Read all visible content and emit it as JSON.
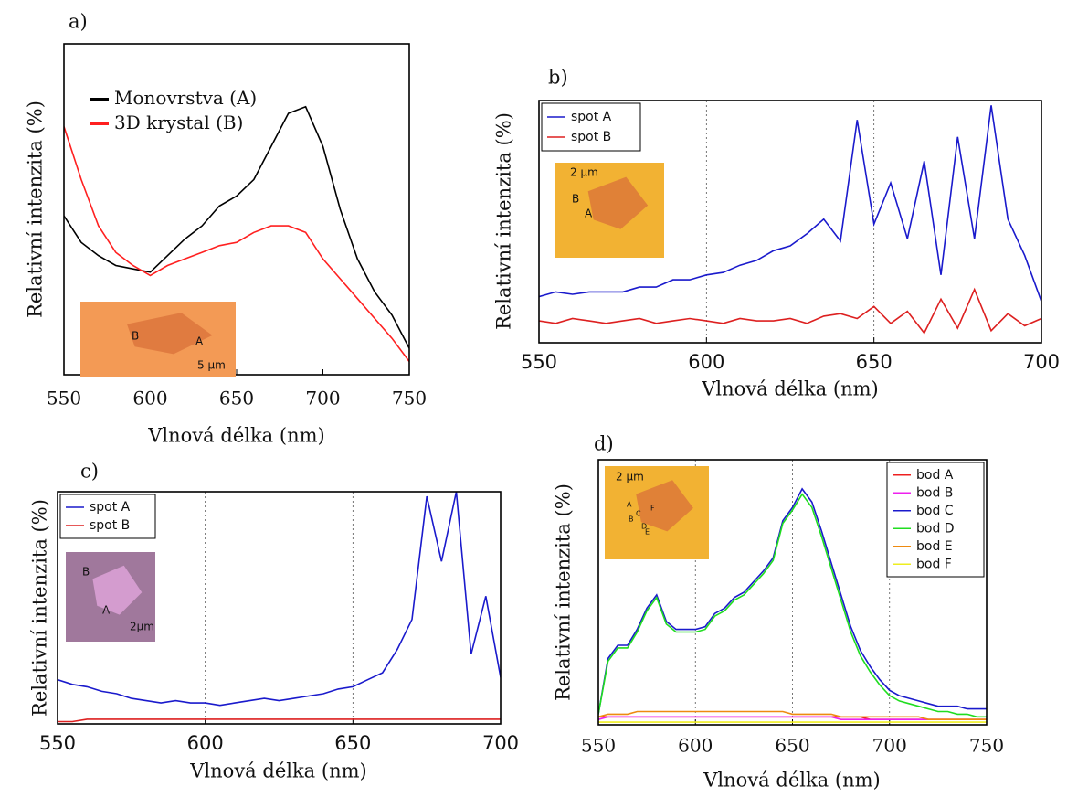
{
  "chart_data": [
    {
      "type": "line",
      "panel": "a)",
      "xlabel": "Vlnová délka (nm)",
      "ylabel": "Relativní intenzita (%)",
      "x": [
        550,
        560,
        570,
        580,
        590,
        600,
        610,
        620,
        630,
        640,
        650,
        660,
        670,
        680,
        690,
        700,
        710,
        720,
        730,
        740,
        750
      ],
      "xlim": [
        550,
        750
      ],
      "xticks": [
        550,
        600,
        650,
        700,
        750
      ],
      "ylim": [
        0,
        100
      ],
      "grid": false,
      "legend": "upper left",
      "series": [
        {
          "name": "Monovrstva (A)",
          "color": "#000000",
          "values": [
            48,
            40,
            36,
            33,
            32,
            31,
            36,
            41,
            45,
            51,
            54,
            59,
            69,
            79,
            81,
            69,
            50,
            35,
            25,
            18,
            8
          ]
        },
        {
          "name": "3D krystal (B)",
          "color": "#ff2020",
          "values": [
            75,
            59,
            45,
            37,
            33,
            30,
            33,
            35,
            37,
            39,
            40,
            43,
            45,
            45,
            43,
            35,
            29,
            23,
            17,
            11,
            4
          ]
        }
      ],
      "inset": [
        "B",
        "A",
        "5 µm"
      ]
    },
    {
      "type": "line",
      "panel": "b)",
      "xlabel": "Vlnová délka (nm)",
      "ylabel": "Relativní intenzita (%)",
      "x": [
        550,
        555,
        560,
        565,
        570,
        575,
        580,
        585,
        590,
        595,
        600,
        605,
        610,
        615,
        620,
        625,
        630,
        635,
        640,
        645,
        650,
        655,
        660,
        665,
        670,
        675,
        680,
        685,
        690,
        695,
        700
      ],
      "xlim": [
        550,
        700
      ],
      "xticks": [
        550,
        600,
        650,
        700
      ],
      "ylim": [
        0,
        100
      ],
      "grid": true,
      "legend": "upper left",
      "series": [
        {
          "name": "spot A",
          "color": "#1a1acc",
          "values": [
            19,
            21,
            20,
            21,
            21,
            21,
            23,
            23,
            26,
            26,
            28,
            29,
            32,
            34,
            38,
            40,
            45,
            51,
            42,
            92,
            49,
            66,
            43,
            75,
            28,
            85,
            43,
            98,
            51,
            36,
            17
          ]
        },
        {
          "name": "spot B",
          "color": "#dd2020",
          "values": [
            9,
            8,
            10,
            9,
            8,
            9,
            10,
            8,
            9,
            10,
            9,
            8,
            10,
            9,
            9,
            10,
            8,
            11,
            12,
            10,
            15,
            8,
            13,
            4,
            18,
            6,
            22,
            5,
            12,
            7,
            10
          ]
        }
      ],
      "inset": [
        "2 µm",
        "B",
        "A"
      ]
    },
    {
      "type": "line",
      "panel": "c)",
      "xlabel": "Vlnová délka (nm)",
      "ylabel": "Relativní intenzita (%)",
      "x": [
        550,
        555,
        560,
        565,
        570,
        575,
        580,
        585,
        590,
        595,
        600,
        605,
        610,
        615,
        620,
        625,
        630,
        635,
        640,
        645,
        650,
        655,
        660,
        665,
        670,
        675,
        680,
        685,
        690,
        695,
        700
      ],
      "xlim": [
        550,
        700
      ],
      "xticks": [
        550,
        600,
        650,
        700
      ],
      "ylim": [
        0,
        100
      ],
      "grid": true,
      "legend": "upper left",
      "series": [
        {
          "name": "spot A",
          "color": "#1a1acc",
          "values": [
            19,
            17,
            16,
            14,
            13,
            11,
            10,
            9,
            10,
            9,
            9,
            8,
            9,
            10,
            11,
            10,
            11,
            12,
            13,
            15,
            16,
            19,
            22,
            32,
            45,
            98,
            70,
            100,
            30,
            55,
            20
          ]
        },
        {
          "name": "spot B",
          "color": "#dd2020",
          "values": [
            1,
            1,
            2,
            2,
            2,
            2,
            2,
            2,
            2,
            2,
            2,
            2,
            2,
            2,
            2,
            2,
            2,
            2,
            2,
            2,
            2,
            2,
            2,
            2,
            2,
            2,
            2,
            2,
            2,
            2,
            2
          ]
        }
      ],
      "inset": [
        "B",
        "A",
        "2µm"
      ]
    },
    {
      "type": "line",
      "panel": "d)",
      "xlabel": "Vlnová délka (nm)",
      "ylabel": "Relativní intenzita (%)",
      "x": [
        550,
        555,
        560,
        565,
        570,
        575,
        580,
        585,
        590,
        595,
        600,
        605,
        610,
        615,
        620,
        625,
        630,
        635,
        640,
        645,
        650,
        655,
        660,
        665,
        670,
        675,
        680,
        685,
        690,
        695,
        700,
        705,
        710,
        715,
        720,
        725,
        730,
        735,
        740,
        745,
        750
      ],
      "xlim": [
        550,
        750
      ],
      "xticks": [
        550,
        600,
        650,
        700,
        750
      ],
      "ylim": [
        0,
        100
      ],
      "grid": true,
      "legend": "upper right",
      "series": [
        {
          "name": "bod A",
          "color": "#ee2020",
          "values": [
            3,
            3,
            3,
            3,
            3,
            3,
            3,
            3,
            3,
            3,
            3,
            3,
            3,
            3,
            3,
            3,
            3,
            3,
            3,
            3,
            3,
            3,
            3,
            3,
            3,
            3,
            3,
            3,
            2,
            2,
            2,
            2,
            2,
            2,
            2,
            2,
            2,
            2,
            2,
            2,
            2
          ]
        },
        {
          "name": "bod B",
          "color": "#ee20ee",
          "values": [
            2,
            3,
            3,
            3,
            3,
            3,
            3,
            3,
            3,
            3,
            3,
            3,
            3,
            3,
            3,
            3,
            3,
            3,
            3,
            3,
            3,
            3,
            3,
            3,
            3,
            2,
            2,
            2,
            2,
            2,
            2,
            2,
            2,
            2,
            2,
            2,
            2,
            2,
            2,
            2,
            2
          ]
        },
        {
          "name": "bod C",
          "color": "#1a1acc",
          "values": [
            4,
            25,
            30,
            30,
            36,
            44,
            49,
            39,
            36,
            36,
            36,
            37,
            42,
            44,
            48,
            50,
            54,
            58,
            63,
            77,
            82,
            89,
            84,
            73,
            61,
            49,
            37,
            28,
            22,
            17,
            13,
            11,
            10,
            9,
            8,
            7,
            7,
            7,
            6,
            6,
            6
          ]
        },
        {
          "name": "bod D",
          "color": "#20dd20",
          "values": [
            4,
            24,
            29,
            29,
            35,
            43,
            48,
            38,
            35,
            35,
            35,
            36,
            41,
            43,
            47,
            49,
            53,
            57,
            62,
            76,
            81,
            87,
            82,
            71,
            59,
            47,
            35,
            26,
            20,
            15,
            11,
            9,
            8,
            7,
            6,
            5,
            5,
            4,
            4,
            3,
            3
          ]
        },
        {
          "name": "bod E",
          "color": "#ee8a10",
          "values": [
            3,
            4,
            4,
            4,
            5,
            5,
            5,
            5,
            5,
            5,
            5,
            5,
            5,
            5,
            5,
            5,
            5,
            5,
            5,
            5,
            4,
            4,
            4,
            4,
            4,
            3,
            3,
            3,
            3,
            3,
            3,
            3,
            3,
            3,
            2,
            2,
            2,
            2,
            2,
            2,
            2
          ]
        },
        {
          "name": "bod F",
          "color": "#eeee20",
          "values": [
            1,
            1,
            1,
            1,
            1,
            1,
            1,
            1,
            1,
            1,
            1,
            1,
            1,
            1,
            1,
            1,
            1,
            1,
            1,
            1,
            1,
            1,
            1,
            1,
            1,
            1,
            1,
            1,
            1,
            1,
            1,
            1,
            1,
            1,
            1,
            1,
            1,
            1,
            1,
            1,
            1
          ]
        }
      ],
      "inset": [
        "2 µm",
        "A",
        "B",
        "C",
        "D",
        "E",
        "F"
      ]
    }
  ]
}
